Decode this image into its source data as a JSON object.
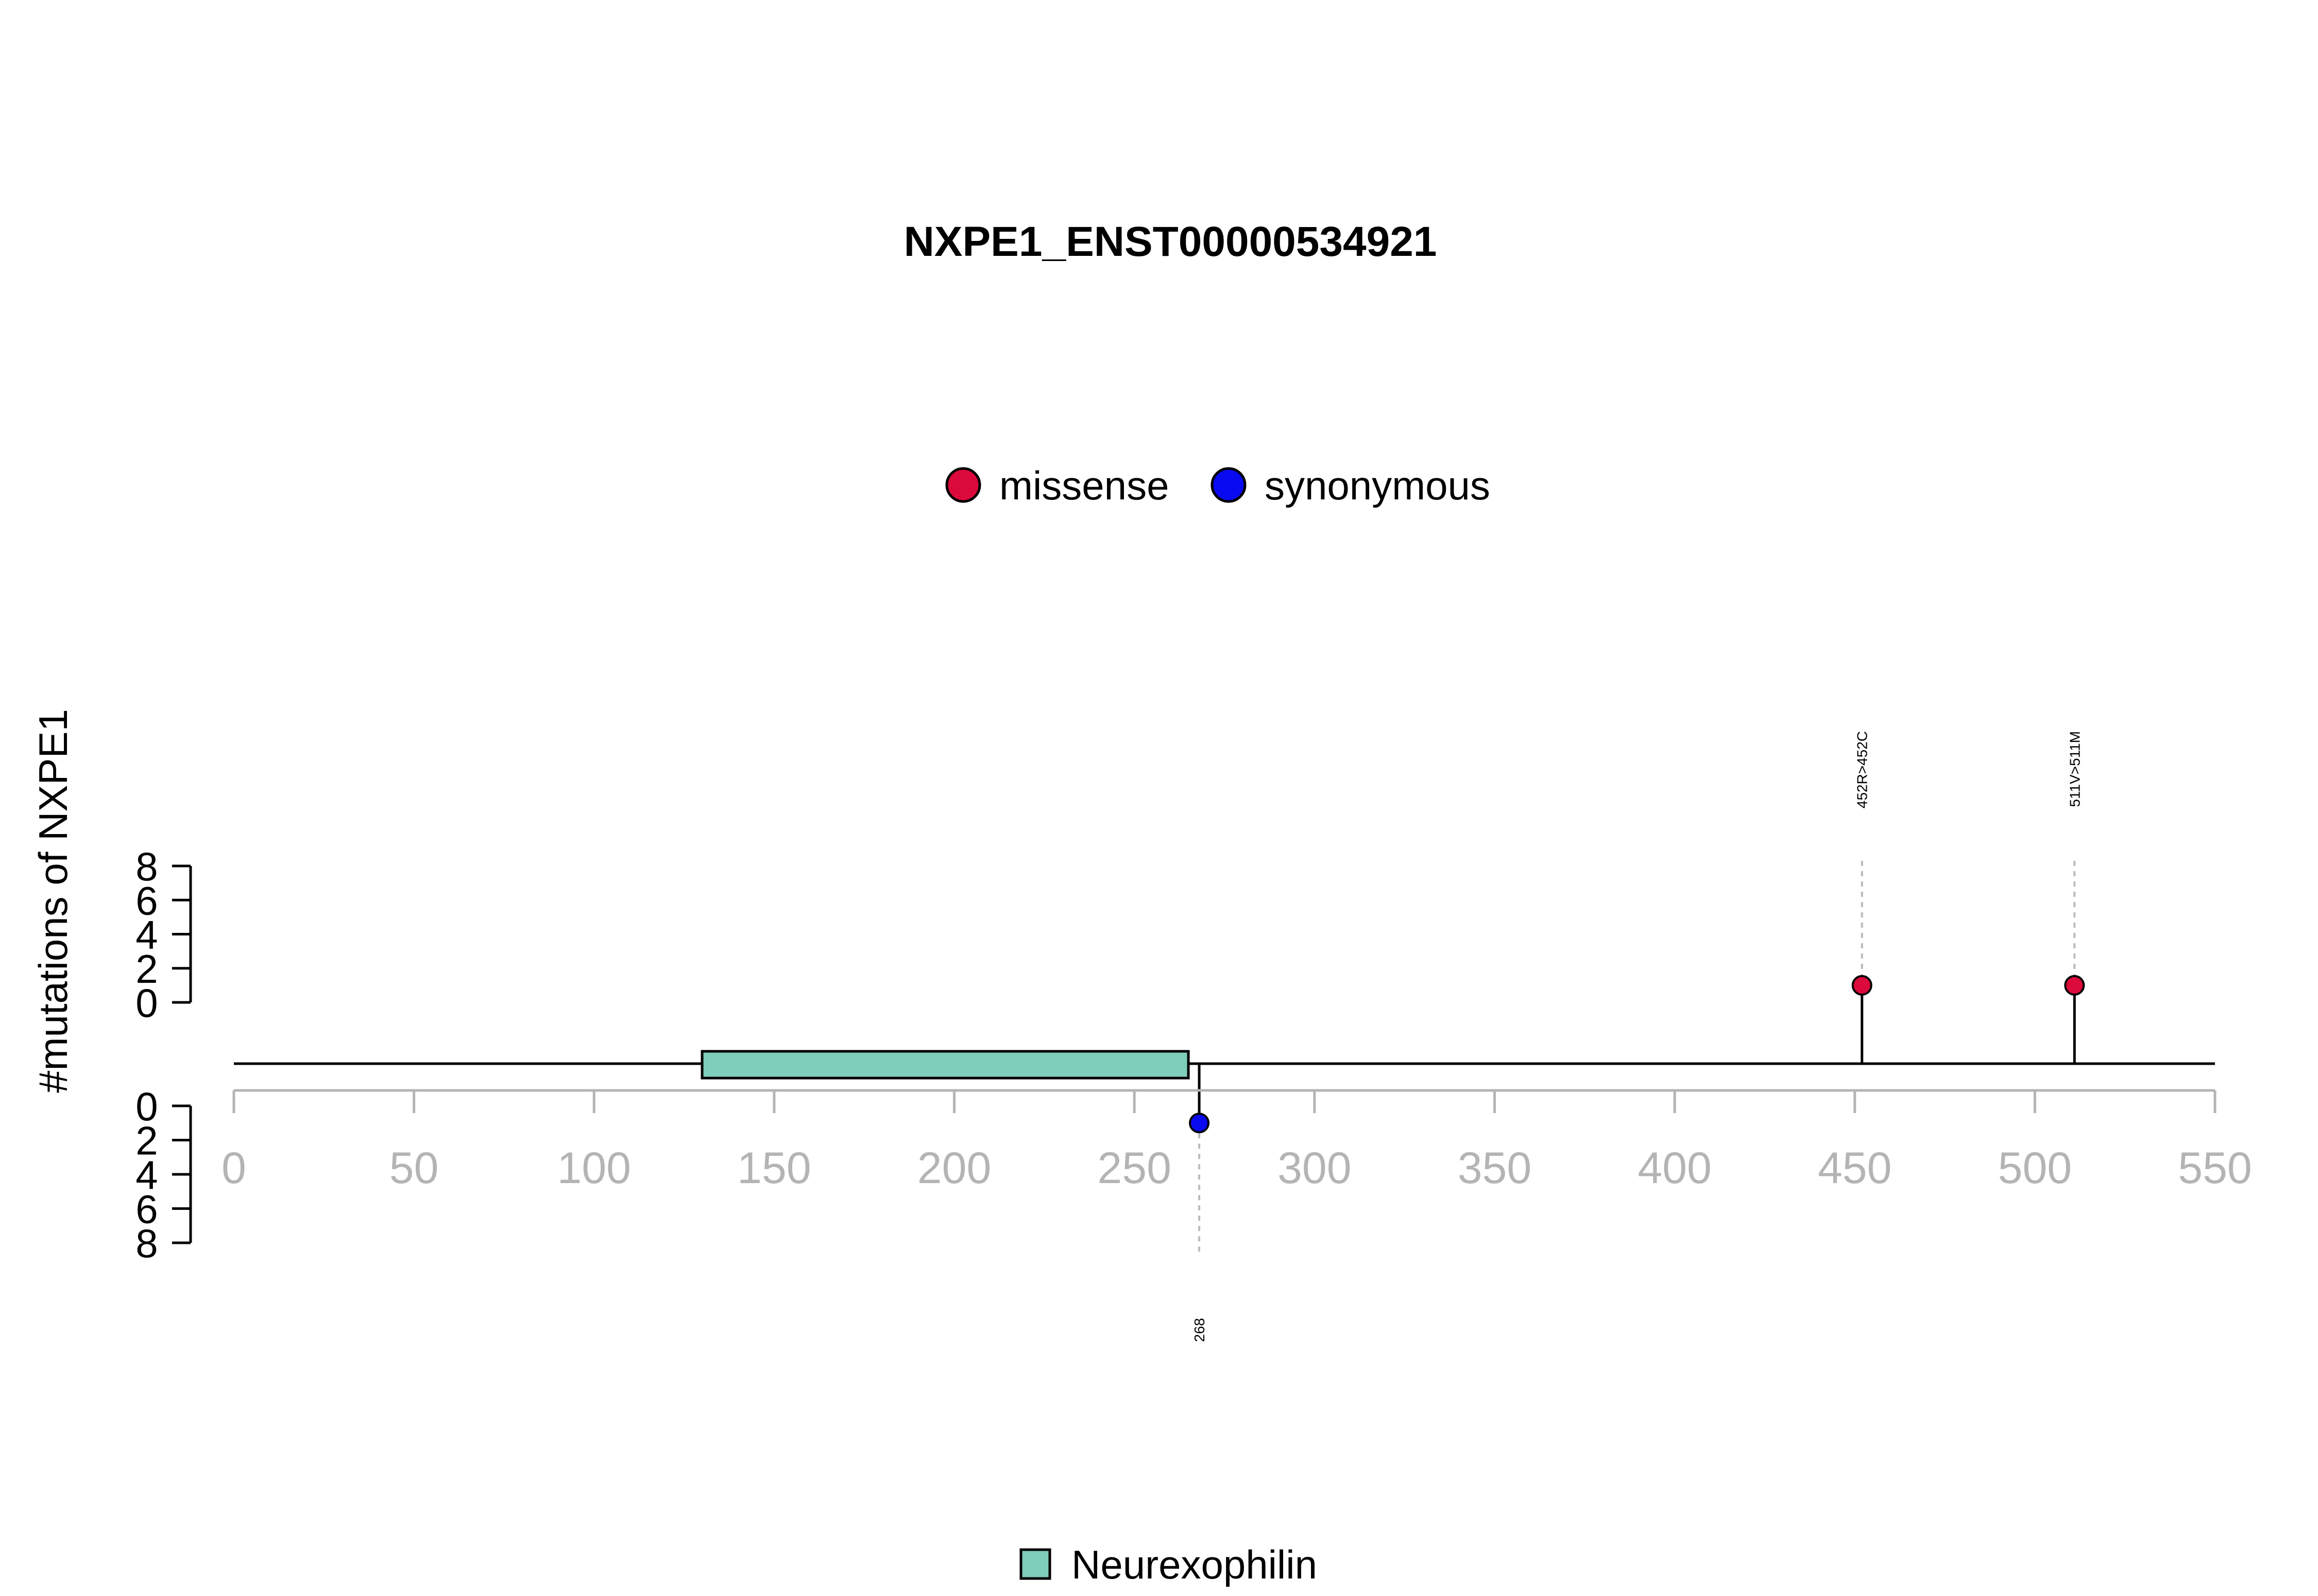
{
  "chart_data": {
    "type": "lollipop",
    "title": "NXPE1_ENST00000534921",
    "ylabel": "#mutations of NXPE1",
    "xlim": [
      0,
      550
    ],
    "x_ticks": [
      "0",
      "50",
      "100",
      "150",
      "200",
      "250",
      "300",
      "350",
      "400",
      "450",
      "500",
      "550"
    ],
    "y_ticks": [
      "0",
      "2",
      "4",
      "6",
      "8"
    ],
    "ylim": [
      0,
      8
    ],
    "legend": [
      {
        "name": "missense",
        "color": "#DC0A3C"
      },
      {
        "name": "synonymous",
        "color": "#0A0AF0"
      }
    ],
    "domains": [
      {
        "name": "Neurexophilin",
        "start": 130,
        "end": 265,
        "color": "#7FCDBB"
      }
    ],
    "mutations": [
      {
        "position": 452,
        "count": 1,
        "type": "missense",
        "label": "452R>452C",
        "side": "top",
        "color": "#DC0A3C"
      },
      {
        "position": 511,
        "count": 1,
        "type": "missense",
        "label": "511V>511M",
        "side": "top",
        "color": "#DC0A3C"
      },
      {
        "position": 268,
        "count": 1,
        "type": "synonymous",
        "label": "268",
        "side": "bottom",
        "color": "#0A0AF0"
      }
    ]
  }
}
